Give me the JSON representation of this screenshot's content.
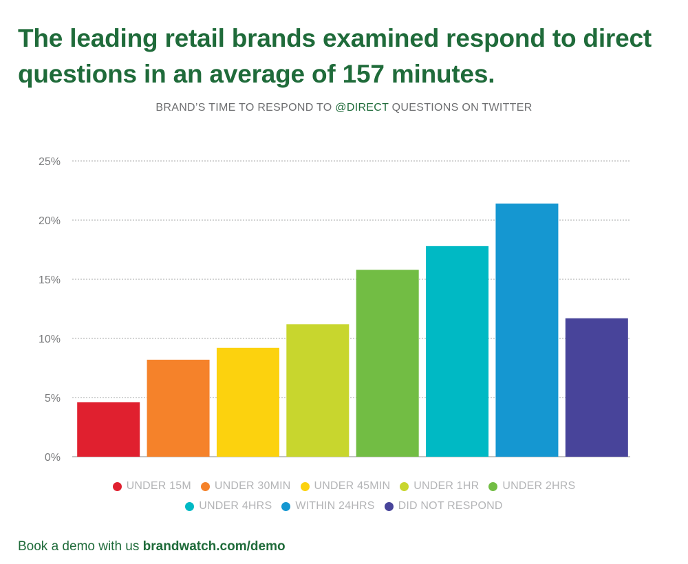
{
  "headline": "The leading retail brands examined respond to direct questions in an average of 157 minutes.",
  "subtitle": {
    "before": "BRAND’S TIME TO RESPOND TO ",
    "highlight": "@DIRECT",
    "after": " QUESTIONS ON TWITTER"
  },
  "footer": {
    "text": "Book a demo with us ",
    "link": "brandwatch.com/demo"
  },
  "colors": {
    "headline": "#1f6b3a",
    "axis_text": "#7a7b7d",
    "legend_text": "#b4b5b7"
  },
  "chart_data": {
    "type": "bar",
    "categories": [
      "UNDER 15M",
      "UNDER 30MIN",
      "UNDER 45MIN",
      "UNDER 1HR",
      "UNDER 2HRS",
      "UNDER 4HRS",
      "WITHIN 24HRS",
      "DID NOT RESPOND"
    ],
    "values": [
      4.6,
      8.2,
      9.2,
      11.2,
      15.8,
      17.8,
      21.4,
      11.7
    ],
    "colors": [
      "#e0202f",
      "#f5822a",
      "#fcd20e",
      "#c8d62e",
      "#72bd44",
      "#00b9c4",
      "#1597d1",
      "#48449a"
    ],
    "ylim": [
      0,
      25
    ],
    "yticks": [
      0,
      5,
      10,
      15,
      20,
      25
    ],
    "yticklabels": [
      "0%",
      "5%",
      "10%",
      "15%",
      "20%",
      "25%"
    ],
    "grid": true,
    "legend": "bottom",
    "legend_rows": [
      [
        0,
        1,
        2,
        3,
        4
      ],
      [
        5,
        6,
        7
      ]
    ]
  }
}
